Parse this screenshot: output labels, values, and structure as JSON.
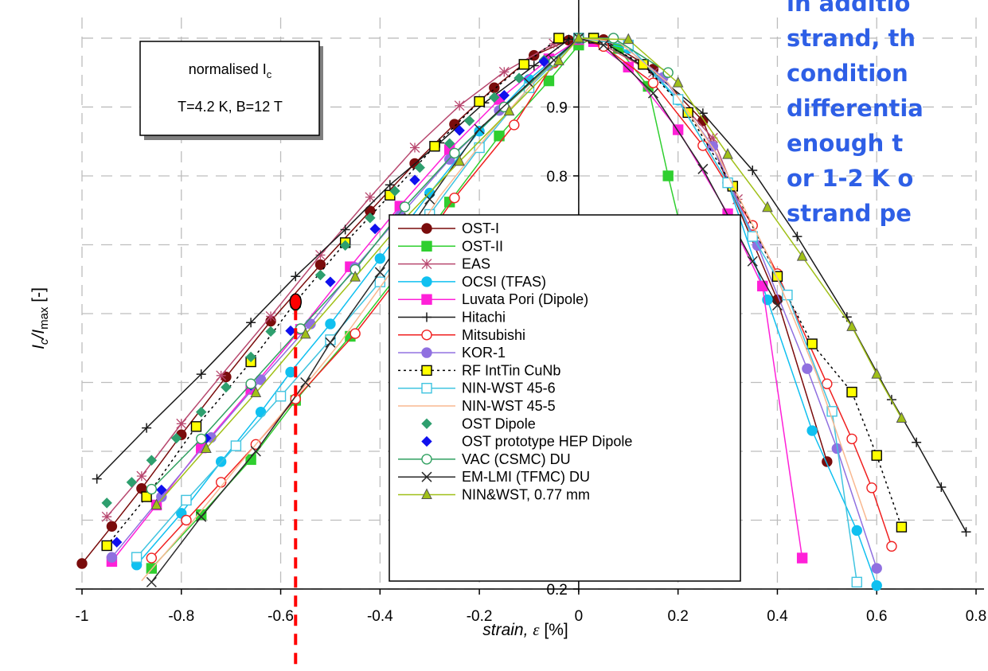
{
  "slide_text": [
    "in additio",
    "strand, th",
    "condition",
    "differentia",
    "enough t",
    "or 1-2 K o",
    "strand pe"
  ],
  "chart_data": {
    "type": "line",
    "xlabel": "strain, ε [%]",
    "ylabel": "Ic/Imax [-]",
    "xlim": [
      -1.0,
      0.8
    ],
    "ylim": [
      0.2,
      1.03
    ],
    "xticks": [
      "-1",
      "-0.8",
      "-0.6",
      "-0.4",
      "-0.2",
      "0",
      "0.2",
      "0.4",
      "0.6",
      "0.8"
    ],
    "yticks": [
      "0.2",
      "0.8",
      "0.9"
    ],
    "grid": true,
    "legend_position": "center",
    "note": {
      "line1": "normalised I",
      "line1_sub": "c",
      "line2": "T=4.2 K, B=12 T"
    },
    "marker_point": {
      "x": -0.57,
      "y": 0.617,
      "color": "#ff0000"
    },
    "marker_line_color": "#ff0000",
    "series": [
      {
        "name": "OST-I",
        "color": "#7a0c0c",
        "marker": "circle",
        "fill": "#7a0c0c",
        "dash": "",
        "x": [
          -1.0,
          -0.94,
          -0.88,
          -0.8,
          -0.71,
          -0.62,
          -0.52,
          -0.42,
          -0.33,
          -0.25,
          -0.17,
          -0.09,
          -0.02,
          0.0,
          0.05,
          0.15,
          0.25,
          0.3,
          0.4,
          0.5
        ],
        "y": [
          0.237,
          0.291,
          0.346,
          0.424,
          0.508,
          0.589,
          0.671,
          0.749,
          0.818,
          0.875,
          0.928,
          0.975,
          0.997,
          1.0,
          0.998,
          0.955,
          0.88,
          0.79,
          0.62,
          0.385
        ]
      },
      {
        "name": "OST-II",
        "color": "#2fcf2f",
        "marker": "square",
        "fill": "#2fcf2f",
        "dash": "",
        "x": [
          -0.86,
          -0.76,
          -0.66,
          -0.57,
          -0.46,
          -0.36,
          -0.26,
          -0.16,
          -0.06,
          0.0,
          0.03,
          0.08,
          0.14,
          0.18,
          0.28
        ],
        "y": [
          0.23,
          0.308,
          0.388,
          0.474,
          0.567,
          0.66,
          0.762,
          0.858,
          0.938,
          0.99,
          1.0,
          0.985,
          0.93,
          0.8,
          0.5
        ]
      },
      {
        "name": "EAS",
        "color": "#b8486f",
        "marker": "star",
        "fill": "none",
        "dash": "",
        "x": [
          -0.95,
          -0.88,
          -0.8,
          -0.72,
          -0.62,
          -0.52,
          -0.42,
          -0.33,
          -0.24,
          -0.15,
          -0.05,
          0.0,
          0.05,
          0.15,
          0.27,
          0.32
        ],
        "y": [
          0.305,
          0.364,
          0.44,
          0.51,
          0.596,
          0.685,
          0.769,
          0.841,
          0.902,
          0.951,
          0.992,
          1.0,
          0.99,
          0.95,
          0.855,
          0.766
        ]
      },
      {
        "name": "OCSI (TFAS)",
        "color": "#10c0f0",
        "marker": "circle",
        "fill": "#10c0f0",
        "dash": "",
        "x": [
          -0.89,
          -0.8,
          -0.72,
          -0.64,
          -0.58,
          -0.5,
          -0.4,
          -0.3,
          -0.2,
          -0.1,
          0.0,
          0.1,
          0.2,
          0.3,
          0.38,
          0.47,
          0.56,
          0.6
        ],
        "y": [
          0.235,
          0.31,
          0.385,
          0.457,
          0.515,
          0.585,
          0.68,
          0.775,
          0.865,
          0.94,
          1.0,
          0.985,
          0.91,
          0.79,
          0.62,
          0.43,
          0.285,
          0.205
        ]
      },
      {
        "name": "Luvata Pori (Dipole)",
        "color": "#ff20d8",
        "marker": "square",
        "fill": "#ff20d8",
        "dash": "",
        "x": [
          -0.94,
          -0.85,
          -0.76,
          -0.66,
          -0.56,
          -0.46,
          -0.36,
          -0.26,
          -0.16,
          -0.06,
          0.0,
          0.03,
          0.1,
          0.2,
          0.3,
          0.37,
          0.45
        ],
        "y": [
          0.24,
          0.322,
          0.405,
          0.49,
          0.577,
          0.668,
          0.756,
          0.838,
          0.911,
          0.97,
          0.998,
          0.995,
          0.958,
          0.867,
          0.745,
          0.64,
          0.245
        ]
      },
      {
        "name": "Hitachi",
        "color": "#1a1a1a",
        "marker": "plus",
        "fill": "none",
        "dash": "",
        "x": [
          -0.97,
          -0.87,
          -0.76,
          -0.66,
          -0.57,
          -0.47,
          -0.38,
          -0.28,
          -0.19,
          -0.09,
          -0.02,
          0.0,
          0.06,
          0.15,
          0.25,
          0.35,
          0.44,
          0.54,
          0.63,
          0.68,
          0.73,
          0.78
        ],
        "y": [
          0.36,
          0.434,
          0.512,
          0.587,
          0.654,
          0.722,
          0.787,
          0.848,
          0.906,
          0.96,
          0.998,
          1.0,
          0.99,
          0.95,
          0.891,
          0.808,
          0.712,
          0.595,
          0.475,
          0.413,
          0.348,
          0.283
        ]
      },
      {
        "name": "Mitsubishi",
        "color": "#f02020",
        "marker": "circle",
        "fill": "none",
        "dash": "",
        "x": [
          -0.86,
          -0.79,
          -0.72,
          -0.65,
          -0.57,
          -0.45,
          -0.35,
          -0.25,
          -0.13,
          -0.05,
          0.0,
          0.05,
          0.15,
          0.25,
          0.35,
          0.4,
          0.5,
          0.55,
          0.59,
          0.63
        ],
        "y": [
          0.245,
          0.3,
          0.355,
          0.41,
          0.476,
          0.571,
          0.664,
          0.768,
          0.874,
          0.964,
          1.0,
          0.988,
          0.935,
          0.844,
          0.728,
          0.658,
          0.498,
          0.418,
          0.347,
          0.262
        ]
      },
      {
        "name": "KOR-1",
        "color": "#9070e0",
        "marker": "circle",
        "fill": "#9070e0",
        "dash": "",
        "x": [
          -0.94,
          -0.84,
          -0.74,
          -0.64,
          -0.54,
          -0.45,
          -0.36,
          -0.26,
          -0.16,
          -0.06,
          0.0,
          0.07,
          0.17,
          0.27,
          0.36,
          0.46,
          0.52,
          0.6
        ],
        "y": [
          0.246,
          0.334,
          0.42,
          0.504,
          0.585,
          0.667,
          0.742,
          0.824,
          0.895,
          0.96,
          1.0,
          1.0,
          0.943,
          0.843,
          0.699,
          0.52,
          0.404,
          0.23
        ]
      },
      {
        "name": "RF IntTin CuNb",
        "color": "#000000",
        "marker": "square",
        "fill": "#ffff00",
        "dash": "3,4",
        "x": [
          -0.95,
          -0.87,
          -0.77,
          -0.66,
          -0.57,
          -0.47,
          -0.38,
          -0.29,
          -0.2,
          -0.11,
          -0.04,
          0.0,
          0.03,
          0.13,
          0.22,
          0.31,
          0.4,
          0.47,
          0.55,
          0.6,
          0.65
        ],
        "y": [
          0.263,
          0.334,
          0.436,
          0.53,
          0.617,
          0.703,
          0.772,
          0.843,
          0.908,
          0.962,
          1.0,
          1.0,
          1.0,
          0.962,
          0.892,
          0.785,
          0.654,
          0.556,
          0.486,
          0.394,
          0.29
        ]
      },
      {
        "name": "NIN-WST 45-6",
        "color": "#40c4e0",
        "marker": "square",
        "fill": "none",
        "dash": "",
        "x": [
          -0.89,
          -0.79,
          -0.69,
          -0.6,
          -0.5,
          -0.4,
          -0.3,
          -0.2,
          -0.1,
          0.0,
          0.1,
          0.2,
          0.3,
          0.35,
          0.42,
          0.51,
          0.56
        ],
        "y": [
          0.246,
          0.329,
          0.408,
          0.48,
          0.562,
          0.646,
          0.744,
          0.841,
          0.928,
          1.0,
          0.99,
          0.911,
          0.79,
          0.712,
          0.627,
          0.458,
          0.21
        ]
      },
      {
        "name": "NIN-WST 45-5",
        "color": "#f8b890",
        "marker": "none",
        "fill": "none",
        "dash": "",
        "x": [
          -0.88,
          -0.78,
          -0.68,
          -0.58,
          -0.48,
          -0.38,
          -0.28,
          -0.18,
          -0.08,
          0.0,
          0.08,
          0.18,
          0.28,
          0.38,
          0.48,
          0.58
        ],
        "y": [
          0.212,
          0.296,
          0.384,
          0.47,
          0.558,
          0.658,
          0.77,
          0.862,
          0.945,
          1.0,
          0.995,
          0.935,
          0.83,
          0.686,
          0.51,
          0.3
        ]
      },
      {
        "name": "OST Dipole",
        "color": "#2e9f6e",
        "marker": "diamond",
        "fill": "#2e9f6e",
        "dash": "none",
        "x": [
          -0.95,
          -0.9,
          -0.86,
          -0.81,
          -0.76,
          -0.71,
          -0.66,
          -0.62,
          -0.57,
          -0.52,
          -0.47,
          -0.42,
          -0.37,
          -0.32,
          -0.26,
          -0.22,
          -0.17,
          -0.12,
          -0.07
        ],
        "y": [
          0.325,
          0.355,
          0.387,
          0.419,
          0.457,
          0.493,
          0.537,
          0.574,
          0.609,
          0.656,
          0.699,
          0.739,
          0.778,
          0.812,
          0.847,
          0.88,
          0.914,
          0.942,
          0.968
        ]
      },
      {
        "name": "OST prototype HEP Dipole",
        "color": "#1010ee",
        "marker": "diamond",
        "fill": "#1010ee",
        "dash": "none",
        "x": [
          -0.93,
          -0.84,
          -0.75,
          -0.66,
          -0.58,
          -0.5,
          -0.41,
          -0.33,
          -0.24,
          -0.15,
          -0.07
        ],
        "y": [
          0.268,
          0.344,
          0.419,
          0.496,
          0.575,
          0.646,
          0.723,
          0.794,
          0.866,
          0.917,
          0.966
        ]
      },
      {
        "name": "VAC (CSMC) DU",
        "color": "#30a060",
        "marker": "circle",
        "fill": "none",
        "dash": "",
        "x": [
          -0.86,
          -0.76,
          -0.66,
          -0.56,
          -0.45,
          -0.35,
          -0.25,
          -0.15,
          -0.05,
          0.0,
          0.07,
          0.18
        ],
        "y": [
          0.345,
          0.418,
          0.498,
          0.578,
          0.664,
          0.755,
          0.833,
          0.9,
          0.966,
          1.0,
          1.0,
          0.95
        ]
      },
      {
        "name": "EM-LMI (TFMC) DU",
        "color": "#2a2a2a",
        "marker": "x",
        "fill": "none",
        "dash": "",
        "x": [
          -0.86,
          -0.76,
          -0.65,
          -0.55,
          -0.5,
          -0.4,
          -0.3,
          -0.2,
          -0.1,
          -0.05,
          0.0,
          0.05,
          0.15,
          0.25,
          0.35,
          0.4
        ],
        "y": [
          0.21,
          0.305,
          0.4,
          0.5,
          0.558,
          0.66,
          0.766,
          0.868,
          0.935,
          0.968,
          1.0,
          0.99,
          0.92,
          0.81,
          0.676,
          0.612
        ]
      },
      {
        "name": "NIN&WST, 0.77 mm",
        "color": "#a0c018",
        "marker": "triangle",
        "fill": "#a0c018",
        "dash": "",
        "x": [
          -0.85,
          -0.75,
          -0.65,
          -0.55,
          -0.45,
          -0.35,
          -0.24,
          -0.14,
          -0.04,
          0.0,
          0.1,
          0.2,
          0.3,
          0.38,
          0.45,
          0.55,
          0.6,
          0.65
        ],
        "y": [
          0.322,
          0.404,
          0.485,
          0.57,
          0.653,
          0.738,
          0.821,
          0.894,
          0.967,
          1.0,
          0.998,
          0.935,
          0.831,
          0.754,
          0.683,
          0.581,
          0.512,
          0.448
        ]
      }
    ]
  }
}
